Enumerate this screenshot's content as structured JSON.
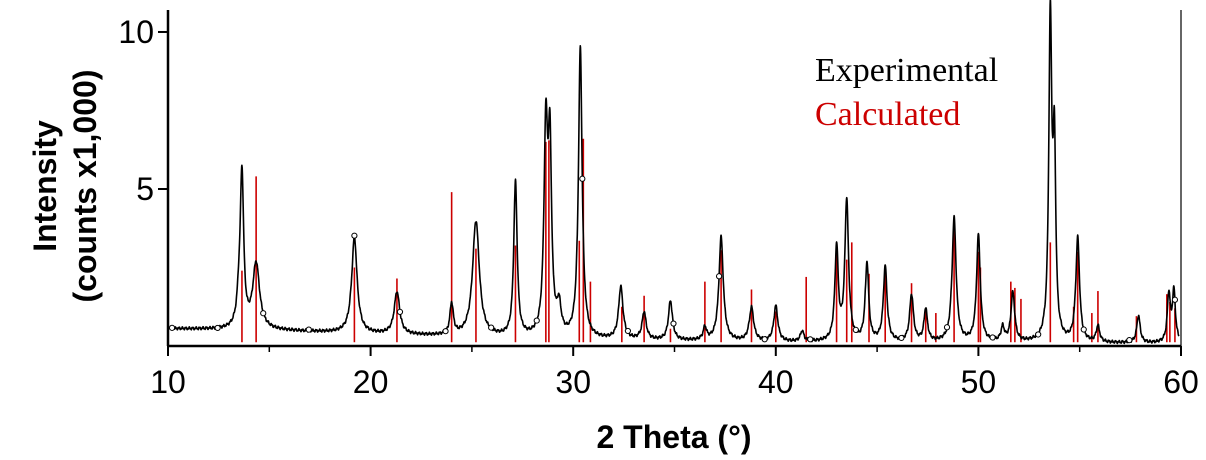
{
  "chart_data": {
    "type": "line",
    "title": "",
    "xlabel": "2 Theta (°)",
    "ylabel_line1": "Intensity",
    "ylabel_line2": "(counts x1,000)",
    "xlim": [
      10,
      60
    ],
    "ylim": [
      0,
      10.7
    ],
    "x_ticks": [
      10,
      20,
      30,
      40,
      50,
      60
    ],
    "y_ticks": [
      5,
      10
    ],
    "grid": false,
    "legend_position": "top-right",
    "colors": {
      "experimental": "#000000",
      "calculated": "#cc0000"
    },
    "series": [
      {
        "name": "Experimental",
        "kind": "profile",
        "baseline_points": [
          [
            10.2,
            0.55
          ],
          [
            15.0,
            0.5
          ],
          [
            20.0,
            0.38
          ],
          [
            25.0,
            0.28
          ],
          [
            30.0,
            0.2
          ],
          [
            40.0,
            0.12
          ],
          [
            50.0,
            0.1
          ],
          [
            59.9,
            0.08
          ]
        ],
        "peaks": [
          {
            "x": 13.5,
            "y": 1.25,
            "w": 0.12
          },
          {
            "x": 13.65,
            "y": 5.3,
            "w": 0.1
          },
          {
            "x": 14.35,
            "y": 2.6,
            "w": 0.2
          },
          {
            "x": 19.2,
            "y": 3.45,
            "w": 0.16
          },
          {
            "x": 21.3,
            "y": 1.7,
            "w": 0.16
          },
          {
            "x": 24.0,
            "y": 1.3,
            "w": 0.1
          },
          {
            "x": 25.2,
            "y": 3.95,
            "w": 0.2
          },
          {
            "x": 27.15,
            "y": 5.15,
            "w": 0.1
          },
          {
            "x": 28.65,
            "y": 6.55,
            "w": 0.11
          },
          {
            "x": 28.85,
            "y": 5.9,
            "w": 0.1
          },
          {
            "x": 29.3,
            "y": 1.1,
            "w": 0.12
          },
          {
            "x": 30.35,
            "y": 9.45,
            "w": 0.11
          },
          {
            "x": 32.35,
            "y": 1.85,
            "w": 0.13
          },
          {
            "x": 33.5,
            "y": 1.05,
            "w": 0.12
          },
          {
            "x": 34.8,
            "y": 1.4,
            "w": 0.12
          },
          {
            "x": 36.5,
            "y": 0.55,
            "w": 0.1
          },
          {
            "x": 37.3,
            "y": 3.45,
            "w": 0.13
          },
          {
            "x": 38.8,
            "y": 1.2,
            "w": 0.13
          },
          {
            "x": 40.0,
            "y": 1.25,
            "w": 0.12
          },
          {
            "x": 41.3,
            "y": 0.45,
            "w": 0.1
          },
          {
            "x": 43.0,
            "y": 3.1,
            "w": 0.1
          },
          {
            "x": 43.5,
            "y": 4.6,
            "w": 0.11
          },
          {
            "x": 44.5,
            "y": 2.6,
            "w": 0.1
          },
          {
            "x": 45.4,
            "y": 2.5,
            "w": 0.11
          },
          {
            "x": 46.7,
            "y": 1.6,
            "w": 0.11
          },
          {
            "x": 47.4,
            "y": 1.15,
            "w": 0.1
          },
          {
            "x": 48.8,
            "y": 4.05,
            "w": 0.12
          },
          {
            "x": 50.0,
            "y": 3.5,
            "w": 0.11
          },
          {
            "x": 51.2,
            "y": 0.55,
            "w": 0.1
          },
          {
            "x": 51.7,
            "y": 1.65,
            "w": 0.11
          },
          {
            "x": 53.55,
            "y": 10.2,
            "w": 0.09
          },
          {
            "x": 53.75,
            "y": 5.8,
            "w": 0.08
          },
          {
            "x": 54.9,
            "y": 3.4,
            "w": 0.11
          },
          {
            "x": 55.9,
            "y": 0.6,
            "w": 0.1
          },
          {
            "x": 57.9,
            "y": 0.95,
            "w": 0.1
          },
          {
            "x": 59.4,
            "y": 1.6,
            "w": 0.09
          },
          {
            "x": 59.65,
            "y": 1.7,
            "w": 0.09
          }
        ]
      },
      {
        "name": "Calculated",
        "kind": "sticks",
        "x": [
          13.65,
          14.35,
          19.2,
          21.3,
          24.0,
          25.2,
          27.15,
          28.65,
          28.8,
          30.3,
          30.5,
          30.85,
          32.4,
          33.5,
          34.8,
          36.5,
          37.3,
          38.8,
          40.0,
          41.5,
          43.0,
          43.5,
          43.75,
          44.6,
          45.4,
          46.7,
          47.4,
          47.9,
          48.8,
          50.0,
          50.1,
          51.6,
          51.8,
          52.1,
          53.55,
          54.7,
          54.9,
          55.6,
          55.9,
          57.8,
          59.3,
          59.45,
          59.7
        ],
        "values": [
          2.4,
          5.4,
          2.5,
          2.15,
          4.9,
          3.1,
          3.2,
          6.5,
          6.55,
          3.35,
          6.6,
          2.05,
          1.25,
          1.6,
          0.55,
          2.05,
          3.05,
          1.8,
          1.1,
          2.2,
          3.05,
          2.75,
          3.3,
          2.3,
          2.45,
          2.0,
          1.15,
          1.05,
          3.85,
          3.0,
          2.5,
          2.05,
          1.85,
          1.5,
          3.3,
          1.25,
          3.0,
          1.05,
          1.75,
          0.95,
          1.65,
          1.4,
          1.2
        ]
      }
    ]
  }
}
